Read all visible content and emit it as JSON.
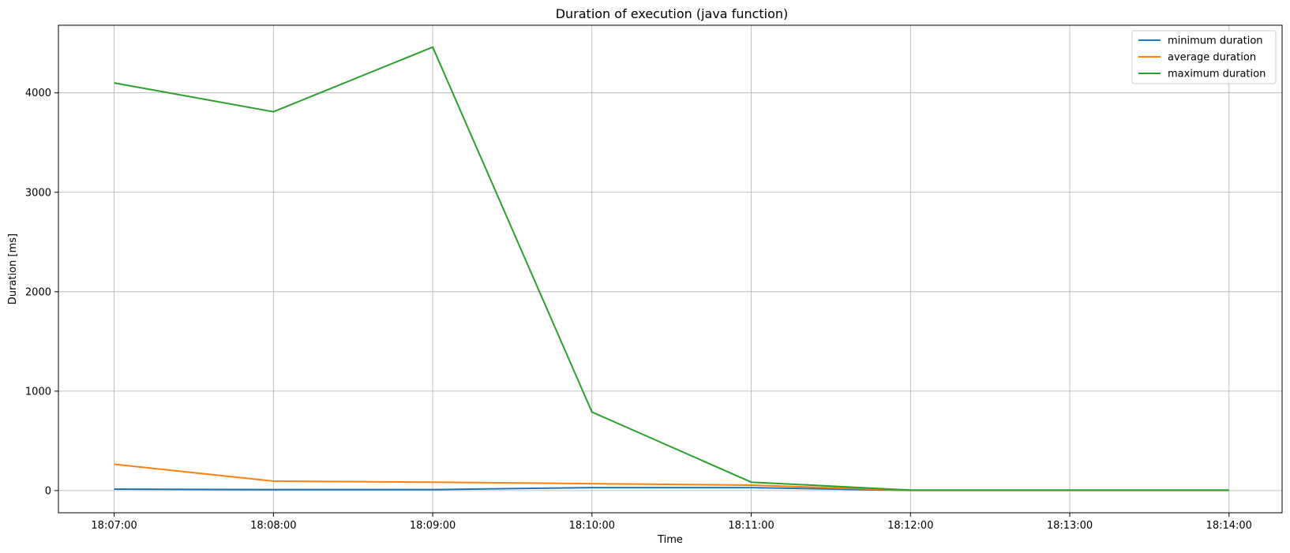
{
  "chart_data": {
    "type": "line",
    "title": "Duration of execution (java function)",
    "xlabel": "Time",
    "ylabel": "Duration [ms]",
    "x": [
      "18:07:00",
      "18:08:00",
      "18:09:00",
      "18:10:00",
      "18:11:00",
      "18:12:00",
      "18:13:00",
      "18:14:00"
    ],
    "xlim": [
      "18:06:39",
      "18:14:20"
    ],
    "ylim": [
      -223,
      4680
    ],
    "yticks": [
      0,
      1000,
      2000,
      3000,
      4000
    ],
    "grid": true,
    "legend_position": "top-right",
    "series": [
      {
        "name": "minimum duration",
        "color": "#1f77b4",
        "values": [
          15,
          10,
          10,
          30,
          30,
          2,
          2,
          2
        ]
      },
      {
        "name": "average duration",
        "color": "#ff7f0e",
        "values": [
          265,
          95,
          85,
          70,
          55,
          3,
          3,
          3
        ]
      },
      {
        "name": "maximum duration",
        "color": "#2ca02c",
        "values": [
          4100,
          3810,
          4460,
          790,
          85,
          5,
          5,
          5
        ]
      }
    ]
  }
}
